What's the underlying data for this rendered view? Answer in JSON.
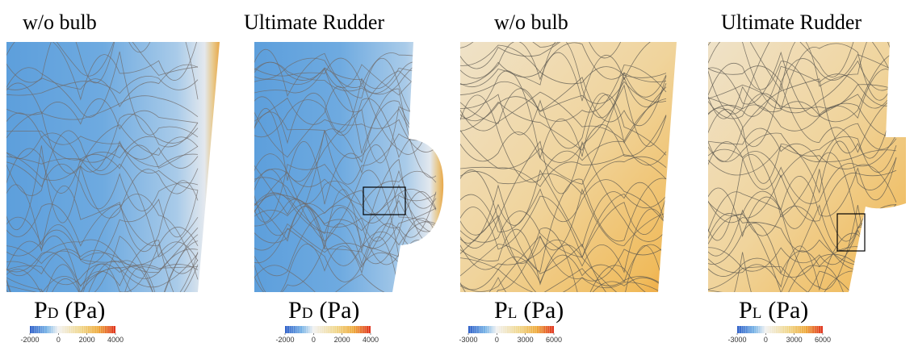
{
  "panels": [
    {
      "title": "w/o bulb",
      "label": {
        "main": "P",
        "sub": "D",
        "unit": "(Pa)"
      },
      "colorbar": {
        "ticks": [
          -2000,
          0,
          2000,
          4000
        ]
      }
    },
    {
      "title": "Ultimate Rudder",
      "label": {
        "main": "P",
        "sub": "D",
        "unit": "(Pa)"
      },
      "colorbar": {
        "ticks": [
          -2000,
          0,
          2000,
          4000
        ]
      }
    },
    {
      "title": "w/o bulb",
      "label": {
        "main": "P",
        "sub": "L",
        "unit": "(Pa)"
      },
      "colorbar": {
        "ticks": [
          -3000,
          0,
          3000,
          6000
        ]
      }
    },
    {
      "title": "Ultimate Rudder",
      "label": {
        "main": "P",
        "sub": "L",
        "unit": "(Pa)"
      },
      "colorbar": {
        "ticks": [
          -3000,
          0,
          3000,
          6000
        ]
      }
    }
  ]
}
